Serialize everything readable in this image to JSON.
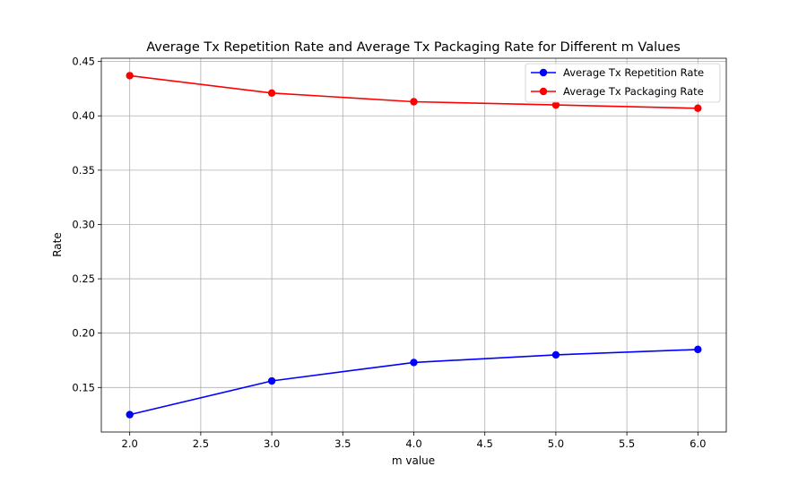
{
  "chart_data": {
    "type": "line",
    "title": "Average Tx Repetition Rate and Average Tx Packaging Rate for Different m Values",
    "xlabel": "m value",
    "ylabel": "Rate",
    "x": [
      2.0,
      3.0,
      4.0,
      5.0,
      6.0
    ],
    "xlim": [
      1.8,
      6.2
    ],
    "ylim": [
      0.109,
      0.453
    ],
    "xticks": [
      2.0,
      2.5,
      3.0,
      3.5,
      4.0,
      4.5,
      5.0,
      5.5,
      6.0
    ],
    "xtick_labels": [
      "2.0",
      "2.5",
      "3.0",
      "3.5",
      "4.0",
      "4.5",
      "5.0",
      "5.5",
      "6.0"
    ],
    "yticks": [
      0.15,
      0.2,
      0.25,
      0.3,
      0.35,
      0.4,
      0.45
    ],
    "ytick_labels": [
      "0.15",
      "0.20",
      "0.25",
      "0.30",
      "0.35",
      "0.40",
      "0.45"
    ],
    "grid": true,
    "legend_position": "top-right",
    "series": [
      {
        "name": "Average Tx Repetition Rate",
        "color": "#0000ff",
        "marker": "circle",
        "values": [
          0.125,
          0.156,
          0.173,
          0.18,
          0.185
        ]
      },
      {
        "name": "Average Tx Packaging Rate",
        "color": "#ff0000",
        "marker": "circle",
        "values": [
          0.437,
          0.421,
          0.413,
          0.41,
          0.407
        ]
      }
    ]
  }
}
